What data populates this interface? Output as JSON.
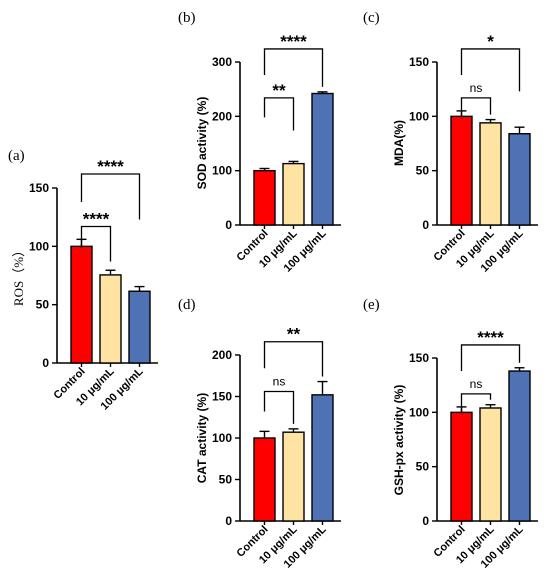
{
  "figure": {
    "bar_colors": [
      "#ff0000",
      "#ffe3a3",
      "#4f72b4"
    ],
    "error_color": "#000000"
  },
  "chart_data": [
    {
      "panel": "(a)",
      "type": "bar",
      "categories": [
        "Control",
        "10 μg/mL",
        "100 μg/mL"
      ],
      "values": [
        100,
        75.5,
        61.5
      ],
      "errors": [
        6,
        4,
        4
      ],
      "ylabel": "ROS（%）",
      "ylim": [
        0,
        150
      ],
      "yticks": [
        0,
        50,
        100,
        150
      ],
      "significance": [
        {
          "from": 0,
          "to": 1,
          "label": "****"
        },
        {
          "from": 0,
          "to": 2,
          "label": "****"
        }
      ]
    },
    {
      "panel": "(b)",
      "type": "bar",
      "categories": [
        "Control",
        "10 μg/mL",
        "100 μg/mL"
      ],
      "values": [
        100,
        113,
        242
      ],
      "errors": [
        4,
        4,
        3
      ],
      "ylabel": "SOD activity (%)",
      "ylim": [
        0,
        300
      ],
      "yticks": [
        0,
        100,
        200,
        300
      ],
      "significance": [
        {
          "from": 0,
          "to": 1,
          "label": "**"
        },
        {
          "from": 0,
          "to": 2,
          "label": "****"
        }
      ]
    },
    {
      "panel": "(c)",
      "type": "bar",
      "categories": [
        "Control",
        "10 μg/mL",
        "100 μg/mL"
      ],
      "values": [
        100,
        94,
        84
      ],
      "errors": [
        5,
        3,
        6
      ],
      "ylabel": "MDA(%)",
      "ylim": [
        0,
        150
      ],
      "yticks": [
        0,
        50,
        100,
        150
      ],
      "significance": [
        {
          "from": 0,
          "to": 1,
          "label": "ns"
        },
        {
          "from": 0,
          "to": 2,
          "label": "*"
        }
      ]
    },
    {
      "panel": "(d)",
      "type": "bar",
      "categories": [
        "Control",
        "10 μg/mL",
        "100 μg/mL"
      ],
      "values": [
        100,
        107,
        152
      ],
      "errors": [
        8,
        4,
        16
      ],
      "ylabel": "CAT activity (%)",
      "ylim": [
        0,
        200
      ],
      "yticks": [
        0,
        50,
        100,
        150,
        200
      ],
      "significance": [
        {
          "from": 0,
          "to": 1,
          "label": "ns"
        },
        {
          "from": 0,
          "to": 2,
          "label": "**"
        }
      ]
    },
    {
      "panel": "(e)",
      "type": "bar",
      "categories": [
        "Control",
        "10 μg/mL",
        "100 μg/mL"
      ],
      "values": [
        100,
        104,
        138
      ],
      "errors": [
        5,
        3,
        3
      ],
      "ylabel": "GSH-px activity (%)",
      "ylim": [
        0,
        150
      ],
      "yticks": [
        0,
        50,
        100,
        150
      ],
      "significance": [
        {
          "from": 0,
          "to": 1,
          "label": "ns"
        },
        {
          "from": 0,
          "to": 2,
          "label": "****"
        }
      ]
    }
  ]
}
